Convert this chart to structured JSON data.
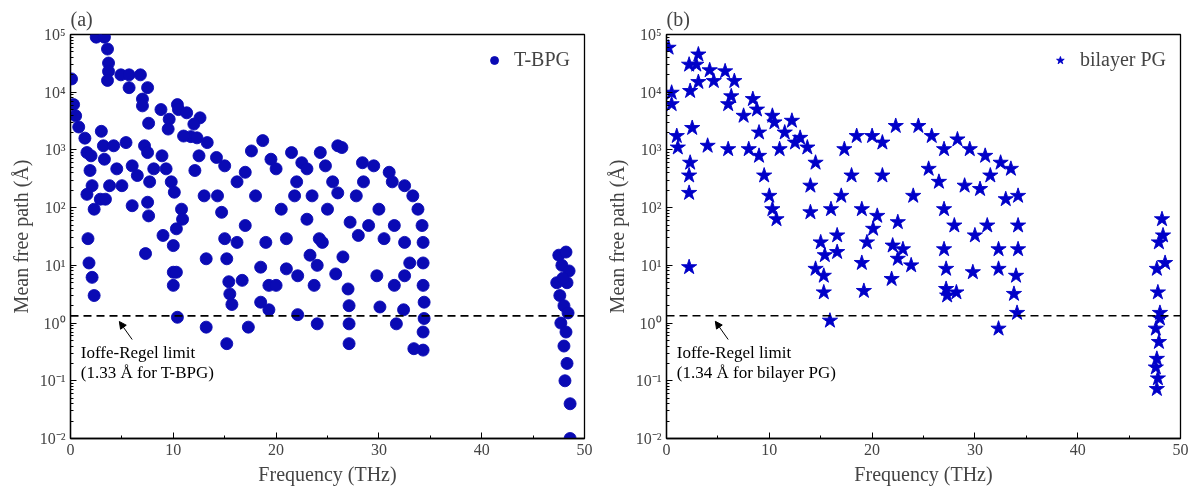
{
  "chart_data": [
    {
      "type": "scatter",
      "title": "(a)",
      "xlabel": "Frequency (THz)",
      "ylabel": "Mean free path (Å)",
      "log": "y",
      "grid": false,
      "legend": "top right",
      "marker": "circle",
      "xlim": [
        0,
        50
      ],
      "xticks": [
        0,
        10,
        20,
        30,
        40,
        50
      ],
      "ylim": [
        0.01,
        100000
      ],
      "yticks": [
        {
          "value": 0.01,
          "label": "10⁻²"
        },
        {
          "value": 0.1,
          "label": "10⁻¹"
        },
        {
          "value": 1,
          "label": "10⁰"
        },
        {
          "value": 10,
          "label": "10¹"
        },
        {
          "value": 100,
          "label": "10²"
        },
        {
          "value": 1000,
          "label": "10³"
        },
        {
          "value": 10000,
          "label": "10⁴"
        },
        {
          "value": 100000,
          "label": "10⁵"
        }
      ],
      "ref_lines": [
        {
          "axis": "y",
          "value": 1.33,
          "label": "Ioffe-Regel limit\n(1.33 Å for T-BPG)",
          "line_style": "dashed",
          "color": "#000000"
        }
      ],
      "series": [
        {
          "name": "T-BPG",
          "color": "#0a0ab4",
          "x": [
            2.5,
            3.3,
            3.6,
            3.7,
            3.7,
            3.6,
            4.9,
            5.7,
            6.8,
            5.7,
            7.5,
            7.0,
            7.0,
            0.1,
            0.3,
            0.5,
            0.8,
            1.4,
            1.6,
            2.0,
            1.9,
            2.1,
            1.6,
            2.3,
            2.9,
            3.4,
            1.7,
            1.8,
            2.1,
            2.3,
            3.0,
            3.2,
            4.2,
            5.4,
            3.3,
            4.5,
            5.0,
            3.8,
            6.0,
            6.5,
            7.2,
            7.5,
            7.7,
            8.1,
            8.9,
            9.3,
            9.8,
            10.1,
            6.0,
            7.5,
            7.6,
            10.8,
            10.9,
            10.3,
            9.0,
            7.3,
            10.0,
            10.0,
            10.3,
            10.0,
            10.4,
            8.8,
            9.6,
            10.4,
            10.5,
            11.3,
            12.6,
            12.0,
            7.6,
            9.5,
            11.7,
            12.3,
            11.0,
            13.3,
            12.5,
            14.2,
            12.1,
            13.0,
            13.2,
            13.2,
            18.7,
            17.6,
            21.5,
            24.3,
            26.0,
            26.4,
            15.0,
            16.2,
            19.5,
            22.5,
            23.0,
            24.8,
            28.4,
            29.5,
            31.0,
            31.3,
            32.5,
            33.3,
            33.8,
            34.2,
            34.3,
            34.3,
            34.3,
            34.4,
            34.4,
            34.3,
            34.3,
            33.4,
            14.3,
            14.7,
            15.0,
            15.2,
            15.4,
            15.5,
            15.7,
            15.2,
            16.7,
            17.3,
            18.5,
            18.5,
            19.3,
            19.3,
            20.0,
            21.0,
            21.0,
            22.1,
            22.1,
            23.3,
            23.7,
            24.0,
            24.0,
            24.2,
            25.8,
            27.0,
            27.1,
            27.1,
            27.1,
            26.5,
            27.2,
            29.8,
            30.1,
            31.5,
            31.7,
            32.4,
            32.5,
            30.5,
            28.0,
            20.5,
            21.8,
            18.0,
            17.0,
            16.2,
            19.0,
            23.0,
            25.0,
            26.0,
            28.5,
            30.0,
            31.5,
            32.5,
            33.0,
            25.5,
            22.0,
            20.0,
            17.0,
            27.8,
            29.0,
            24.5,
            23.5,
            47.5,
            48.2,
            47.8,
            48.3,
            47.6,
            48.0,
            48.4,
            47.7,
            48.2,
            48.0,
            48.3,
            48.1,
            48.6,
            48.6,
            47.3,
            48.5,
            47.9
          ],
          "values": [
            90000,
            90000,
            56000,
            32000,
            23000,
            16000,
            20000,
            20000,
            20000,
            12000,
            12000,
            7600,
            5800,
            17000,
            6100,
            3900,
            2500,
            1600,
            900,
            790,
            440,
            240,
            170,
            94,
            140,
            140,
            29,
            11,
            6.2,
            3.0,
            2100,
            1180,
            1180,
            1340,
            690,
            470,
            240,
            240,
            530,
            360,
            1180,
            900,
            280,
            470,
            790,
            470,
            280,
            185,
            108,
            124,
            72,
            94,
            63,
            43,
            33,
            16,
            22,
            7.6,
            7.6,
            4.5,
            1.26,
            5000,
            3400,
            6100,
            5000,
            4400,
            3600,
            2800,
            2900,
            2300,
            1700,
            1620,
            1740,
            1340,
            790,
            740,
            440,
            160,
            13,
            0.85,
            1450,
            960,
            900,
            900,
            1180,
            1100,
            530,
            280,
            690,
            600,
            470,
            530,
            600,
            530,
            410,
            280,
            240,
            160,
            94,
            49,
            25,
            11,
            4.5,
            2.3,
            1.2,
            0.7,
            0.34,
            0.36,
            160,
            83,
            29,
            13,
            5.2,
            3.2,
            2.1,
            0.44,
            5.5,
            0.85,
            9.3,
            2.3,
            4.5,
            1.7,
            4.5,
            8.7,
            29,
            6.6,
            1.4,
            15,
            4.5,
            10,
            0.97,
            29,
            7.1,
            3.9,
            2.0,
            0.97,
            0.44,
            14,
            56,
            6.6,
            1.9,
            4.5,
            0.97,
            1.7,
            6.6,
            29,
            33,
            94,
            160,
            160,
            49,
            25,
            25,
            63,
            94,
            180,
            280,
            94,
            49,
            25,
            11,
            280,
            280,
            470,
            410,
            160,
            49,
            25,
            160,
            15,
            17,
            10,
            5,
            3,
            2,
            1.5,
            1,
            0.7,
            0.4,
            0.2,
            0.1,
            0.04,
            0.01,
            5,
            8,
            6
          ]
        }
      ]
    },
    {
      "type": "scatter",
      "title": "(b)",
      "xlabel": "Frequency (THz)",
      "ylabel": "Mean free path (Å)",
      "log": "y",
      "grid": false,
      "legend": "top right",
      "marker": "star",
      "xlim": [
        0,
        50
      ],
      "xticks": [
        0,
        10,
        20,
        30,
        40,
        50
      ],
      "ylim": [
        0.01,
        100000
      ],
      "yticks": [
        {
          "value": 0.01,
          "label": "10⁻²"
        },
        {
          "value": 0.1,
          "label": "10⁻¹"
        },
        {
          "value": 1,
          "label": "10⁰"
        },
        {
          "value": 10,
          "label": "10¹"
        },
        {
          "value": 100,
          "label": "10²"
        },
        {
          "value": 1000,
          "label": "10³"
        },
        {
          "value": 10000,
          "label": "10⁴"
        },
        {
          "value": 100000,
          "label": "10⁵"
        }
      ],
      "ref_lines": [
        {
          "axis": "y",
          "value": 1.34,
          "label": "Ioffe-Regel limit\n(1.34 Å for bilayer PG)",
          "line_style": "dashed",
          "color": "#000000"
        }
      ],
      "series": [
        {
          "name": "bilayer PG",
          "color": "#0000c8",
          "x": [
            0.2,
            0.5,
            0.5,
            2.3,
            2.2,
            3.1,
            2.9,
            3.1,
            4.2,
            4.6,
            5.7,
            6.6,
            6.3,
            6.0,
            8.4,
            7.5,
            8.8,
            10.3,
            10.5,
            12.2,
            9.0,
            11.5,
            13.0,
            13.7,
            1.0,
            2.5,
            1.1,
            2.3,
            2.2,
            2.2,
            2.2,
            4.0,
            6.0,
            8.0,
            9.0,
            9.5,
            10.0,
            10.3,
            10.7,
            14.5,
            14.0,
            14.0,
            14.5,
            15.3,
            15.3,
            15.9,
            15.0,
            15.4,
            16.6,
            16.6,
            17.3,
            18.5,
            20.0,
            21.0,
            22.3,
            24.5,
            25.8,
            27.0,
            28.3,
            29.5,
            31.0,
            32.5,
            33.5,
            34.2,
            34.2,
            34.2,
            34.0,
            33.8,
            34.1,
            32.3,
            32.3,
            32.3,
            31.2,
            30.0,
            29.8,
            27.2,
            27.2,
            27.3,
            28.2,
            27.0,
            27.0,
            28.0,
            19.0,
            19.2,
            19.5,
            19.0,
            20.1,
            20.5,
            22.0,
            21.9,
            22.5,
            23.0,
            23.8,
            22.5,
            24.0,
            18.0,
            17.0,
            21.0,
            25.5,
            26.5,
            30.5,
            31.5,
            33.0,
            29.0,
            16.0,
            12.5,
            11.0,
            48.2,
            47.9,
            47.7,
            48.5,
            47.8,
            48.0,
            47.6,
            47.9,
            47.7,
            47.6,
            47.8,
            47.7,
            48.3,
            48.0
          ],
          "values": [
            59000,
            9800,
            6200,
            10500,
            30000,
            45000,
            30000,
            15000,
            24000,
            15600,
            23000,
            15600,
            8500,
            6200,
            7600,
            3900,
            5000,
            3900,
            3000,
            3200,
            2000,
            2000,
            1620,
            1100,
            1740,
            2400,
            1100,
            600,
            360,
            180,
            9.3,
            1180,
            1030,
            1030,
            790,
            360,
            160,
            94,
            63,
            600,
            240,
            83,
            8.7,
            6.6,
            3.4,
            1.1,
            25,
            15,
            33,
            17,
            1030,
            1740,
            1740,
            1340,
            2600,
            2600,
            1740,
            1030,
            1520,
            1030,
            790,
            600,
            470,
            160,
            49,
            19,
            6.6,
            3.2,
            1.5,
            0.8,
            8.7,
            19,
            49,
            33,
            7.6,
            8.7,
            3.9,
            3.0,
            3.4,
            19,
            94,
            49,
            11,
            3.6,
            25,
            94,
            43,
            72,
            22,
            5.8,
            13,
            19,
            10,
            56,
            160,
            360,
            160,
            360,
            470,
            280,
            210,
            360,
            140,
            240,
            94,
            1340,
            1030,
            63,
            25,
            8.7,
            11,
            3.4,
            1.5,
            0.8,
            0.47,
            0.24,
            0.17,
            0.11,
            0.072,
            33,
            1.2
          ]
        }
      ]
    }
  ]
}
